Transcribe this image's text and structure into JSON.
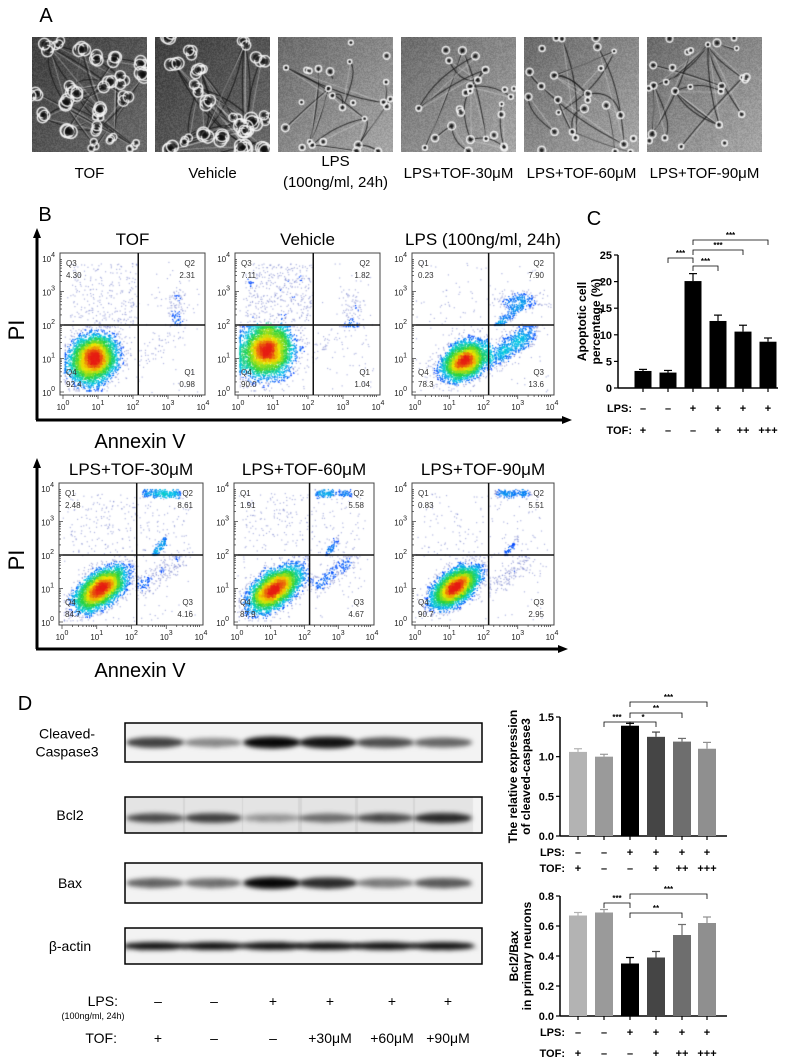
{
  "panel_labels": {
    "a": "A",
    "b": "B",
    "c": "C",
    "d": "D"
  },
  "panel_a": {
    "images": [
      {
        "caption": "TOF"
      },
      {
        "caption": "Vehicle"
      },
      {
        "caption": "LPS",
        "caption_line2": "(100ng/ml, 24h)"
      },
      {
        "caption": "LPS+TOF-30μM"
      },
      {
        "caption": "LPS+TOF-60μM"
      },
      {
        "caption": "LPS+TOF-90μM"
      }
    ]
  },
  "panel_b": {
    "y_label": "PI",
    "x_label": "Annexin V",
    "tick_base": "10",
    "tick_exponents": [
      "0",
      "1",
      "2",
      "3",
      "4"
    ],
    "plots": [
      {
        "title": "TOF",
        "quadrants": {
          "top_left": {
            "label": "Q3",
            "value": "4.30"
          },
          "top_right": {
            "label": "Q2",
            "value": "2.31"
          },
          "bottom_left": {
            "label": "Q4",
            "value": "92.4"
          },
          "bottom_right": {
            "label": "Q1",
            "value": "0.98"
          }
        }
      },
      {
        "title": "Vehicle",
        "quadrants": {
          "top_left": {
            "label": "Q3",
            "value": "7.11"
          },
          "top_right": {
            "label": "Q2",
            "value": "1.82"
          },
          "bottom_left": {
            "label": "Q4",
            "value": "90.0"
          },
          "bottom_right": {
            "label": "Q1",
            "value": "1.04"
          }
        }
      },
      {
        "title": "LPS (100ng/ml, 24h)",
        "quadrants": {
          "top_left": {
            "label": "Q1",
            "value": "0.23"
          },
          "top_right": {
            "label": "Q2",
            "value": "7.90"
          },
          "bottom_left": {
            "label": "Q4",
            "value": "78.3"
          },
          "bottom_right": {
            "label": "Q3",
            "value": "13.6"
          }
        }
      },
      {
        "title": "LPS+TOF-30μM",
        "quadrants": {
          "top_left": {
            "label": "Q1",
            "value": "2.48"
          },
          "top_right": {
            "label": "Q2",
            "value": "8.61"
          },
          "bottom_left": {
            "label": "Q4",
            "value": "84.7"
          },
          "bottom_right": {
            "label": "Q3",
            "value": "4.16"
          }
        }
      },
      {
        "title": "LPS+TOF-60μM",
        "quadrants": {
          "top_left": {
            "label": "Q1",
            "value": "1.91"
          },
          "top_right": {
            "label": "Q2",
            "value": "5.58"
          },
          "bottom_left": {
            "label": "Q4",
            "value": "87.9"
          },
          "bottom_right": {
            "label": "Q3",
            "value": "4.67"
          }
        }
      },
      {
        "title": "LPS+TOF-90μM",
        "quadrants": {
          "top_left": {
            "label": "Q1",
            "value": "0.83"
          },
          "top_right": {
            "label": "Q2",
            "value": "5.51"
          },
          "bottom_left": {
            "label": "Q4",
            "value": "90.7"
          },
          "bottom_right": {
            "label": "Q3",
            "value": "2.95"
          }
        }
      }
    ]
  },
  "panel_d": {
    "blots": [
      {
        "label": "Cleaved-",
        "label_line2": "Caspase3"
      },
      {
        "label": "Bcl2"
      },
      {
        "label": "Bax"
      },
      {
        "label": "β-actin"
      }
    ],
    "lps_label": "LPS:",
    "lps_sublabel": "(100ng/ml, 24h)",
    "tof_label": "TOF:",
    "lps": [
      "–",
      "–",
      "+",
      "+",
      "+",
      "+"
    ],
    "tof": [
      "+",
      "–",
      "–",
      "+30μM",
      "+60μM",
      "+90μM"
    ]
  },
  "chart_data": [
    {
      "type": "bar",
      "panel": "C",
      "ylabel": [
        "Apoptotic cell",
        "percentage (%)"
      ],
      "ylim": [
        0,
        25
      ],
      "yticks": [
        "0",
        "5",
        "10",
        "15",
        "20",
        "25"
      ],
      "row_labels": [
        "LPS:",
        "TOF:"
      ],
      "conditions": {
        "LPS": [
          "–",
          "–",
          "+",
          "+",
          "+",
          "+"
        ],
        "TOF": [
          "+",
          "–",
          "–",
          "+",
          "++",
          "+++"
        ]
      },
      "values": [
        3.2,
        2.9,
        20.1,
        12.6,
        10.6,
        8.7
      ],
      "errors": [
        0.3,
        0.4,
        1.4,
        1.1,
        1.2,
        0.7
      ],
      "bar_colors": [
        "#000000",
        "#000000",
        "#000000",
        "#000000",
        "#000000",
        "#000000"
      ],
      "significance": [
        {
          "from": 1,
          "to": 2,
          "label": "***"
        },
        {
          "from": 2,
          "to": 3,
          "label": "***"
        },
        {
          "from": 2,
          "to": 4,
          "label": "***"
        },
        {
          "from": 2,
          "to": 5,
          "label": "***"
        }
      ]
    },
    {
      "type": "bar",
      "panel": "D-top",
      "ylabel": [
        "The relative expression",
        "of cleaved-caspase3"
      ],
      "ylim": [
        0,
        1.5
      ],
      "yticks": [
        "0.0",
        "0.5",
        "1.0",
        "1.5"
      ],
      "row_labels": [
        "LPS:",
        "TOF:"
      ],
      "conditions": {
        "LPS": [
          "–",
          "–",
          "+",
          "+",
          "+",
          "+"
        ],
        "TOF": [
          "+",
          "–",
          "–",
          "+",
          "++",
          "+++"
        ]
      },
      "values": [
        1.06,
        1.0,
        1.39,
        1.25,
        1.19,
        1.1
      ],
      "errors": [
        0.04,
        0.03,
        0.03,
        0.06,
        0.04,
        0.08
      ],
      "bar_colors": [
        "#b3b3b3",
        "#9a9a9a",
        "#000000",
        "#454545",
        "#6e6e6e",
        "#8f8f8f"
      ],
      "significance": [
        {
          "from": 1,
          "to": 2,
          "label": "***"
        },
        {
          "from": 2,
          "to": 3,
          "label": "*"
        },
        {
          "from": 2,
          "to": 4,
          "label": "**"
        },
        {
          "from": 2,
          "to": 5,
          "label": "***"
        }
      ]
    },
    {
      "type": "bar",
      "panel": "D-bottom",
      "ylabel": [
        "Bcl2/Bax",
        "in primary neurons"
      ],
      "ylim": [
        0,
        0.8
      ],
      "yticks": [
        "0.0",
        "0.2",
        "0.4",
        "0.6",
        "0.8"
      ],
      "row_labels": [
        "LPS:",
        "TOF:"
      ],
      "conditions": {
        "LPS": [
          "–",
          "–",
          "+",
          "+",
          "+",
          "+"
        ],
        "TOF": [
          "+",
          "–",
          "–",
          "+",
          "++",
          "+++"
        ]
      },
      "values": [
        0.67,
        0.69,
        0.35,
        0.39,
        0.54,
        0.62
      ],
      "errors": [
        0.02,
        0.02,
        0.04,
        0.04,
        0.07,
        0.04
      ],
      "bar_colors": [
        "#b3b3b3",
        "#9a9a9a",
        "#000000",
        "#454545",
        "#6e6e6e",
        "#8f8f8f"
      ],
      "significance": [
        {
          "from": 1,
          "to": 2,
          "label": "***"
        },
        {
          "from": 2,
          "to": 4,
          "label": "**"
        },
        {
          "from": 2,
          "to": 5,
          "label": "***"
        }
      ]
    }
  ]
}
